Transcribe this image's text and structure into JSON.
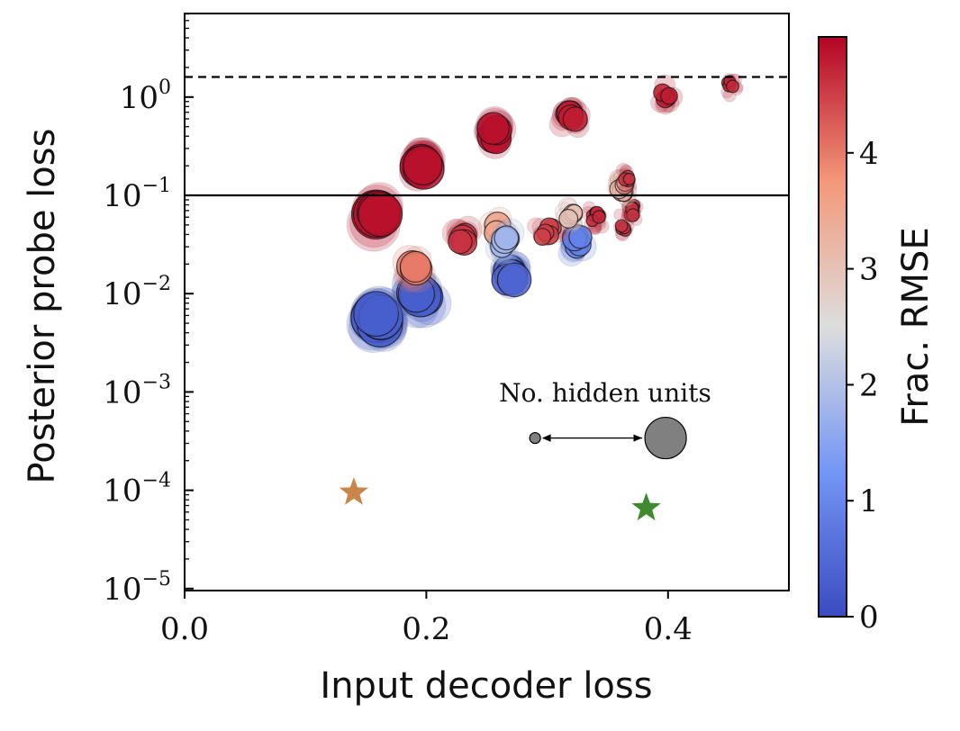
{
  "chart_data": {
    "type": "scatter",
    "xlabel": "Input decoder loss",
    "ylabel": "Posterior probe loss",
    "xlim": [
      0.0,
      0.5
    ],
    "ylim_log10": [
      -5,
      0.8
    ],
    "y_scale": "log",
    "x_ticks": [
      {
        "value": 0.0,
        "label": "0.0"
      },
      {
        "value": 0.2,
        "label": "0.2"
      },
      {
        "value": 0.4,
        "label": "0.4"
      }
    ],
    "y_ticks": [
      {
        "exp": 0,
        "base": "10",
        "sup": "0"
      },
      {
        "exp": -1,
        "base": "10",
        "sup": "−1"
      },
      {
        "exp": -2,
        "base": "10",
        "sup": "−2"
      },
      {
        "exp": -3,
        "base": "10",
        "sup": "−3"
      },
      {
        "exp": -4,
        "base": "10",
        "sup": "−4"
      },
      {
        "exp": -5,
        "base": "10",
        "sup": "−5"
      }
    ],
    "reference_lines": [
      {
        "name": "dashed-reference-line",
        "style": "dashed",
        "y": 1.6
      },
      {
        "name": "solid-reference-line",
        "style": "solid",
        "y": 0.1
      }
    ],
    "colorbar": {
      "label": "Frac. RMSE",
      "min": 0,
      "max": 5,
      "ticks": [
        {
          "value": 0,
          "label": "0"
        },
        {
          "value": 1,
          "label": "1"
        },
        {
          "value": 2,
          "label": "2"
        },
        {
          "value": 3,
          "label": "3"
        },
        {
          "value": 4,
          "label": "4"
        }
      ]
    },
    "size_legend": {
      "label": "No. hidden units",
      "x_small": 0.29,
      "x_large": 0.398,
      "y": 0.00034
    },
    "stars": [
      {
        "name": "orange-star",
        "x": 0.14,
        "y": 9.5e-05,
        "color": "#c8864a"
      },
      {
        "name": "green-star",
        "x": 0.382,
        "y": 6.6e-05,
        "color": "#3f8a2e"
      }
    ],
    "clusters": [
      {
        "x": 0.16,
        "y": 0.063,
        "rmse": 4.9,
        "size": 5,
        "spread": 0.004,
        "n": 4
      },
      {
        "x": 0.196,
        "y": 0.21,
        "rmse": 4.9,
        "size": 4,
        "spread": 0.004,
        "n": 5
      },
      {
        "x": 0.257,
        "y": 0.42,
        "rmse": 4.9,
        "size": 3,
        "spread": 0.004,
        "n": 4
      },
      {
        "x": 0.32,
        "y": 0.6,
        "rmse": 4.8,
        "size": 2,
        "spread": 0.008,
        "n": 5
      },
      {
        "x": 0.398,
        "y": 1.07,
        "rmse": 4.8,
        "size": 1,
        "spread": 0.006,
        "n": 4
      },
      {
        "x": 0.452,
        "y": 1.27,
        "rmse": 4.7,
        "size": 0,
        "spread": 0.006,
        "n": 4
      },
      {
        "x": 0.16,
        "y": 0.0055,
        "rmse": 0.3,
        "size": 5,
        "spread": 0.006,
        "n": 8
      },
      {
        "x": 0.195,
        "y": 0.0095,
        "rmse": 0.3,
        "size": 4,
        "spread": 0.008,
        "n": 7
      },
      {
        "x": 0.27,
        "y": 0.015,
        "rmse": 0.4,
        "size": 3,
        "spread": 0.006,
        "n": 6
      },
      {
        "x": 0.325,
        "y": 0.033,
        "rmse": 0.9,
        "size": 2,
        "spread": 0.005,
        "n": 5
      },
      {
        "x": 0.37,
        "y": 0.069,
        "rmse": 4.6,
        "size": 0,
        "spread": 0.004,
        "n": 6
      },
      {
        "x": 0.362,
        "y": 0.12,
        "rmse": 3.2,
        "size": 1,
        "spread": 0.006,
        "n": 8
      },
      {
        "x": 0.19,
        "y": 0.018,
        "rmse": 4.0,
        "size": 3,
        "spread": 0.004,
        "n": 3
      },
      {
        "x": 0.23,
        "y": 0.036,
        "rmse": 4.6,
        "size": 2,
        "spread": 0.005,
        "n": 4
      },
      {
        "x": 0.258,
        "y": 0.045,
        "rmse": 3.5,
        "size": 2,
        "spread": 0.005,
        "n": 3
      },
      {
        "x": 0.265,
        "y": 0.033,
        "rmse": 1.8,
        "size": 2,
        "spread": 0.005,
        "n": 4
      },
      {
        "x": 0.3,
        "y": 0.042,
        "rmse": 4.5,
        "size": 1,
        "spread": 0.01,
        "n": 5
      },
      {
        "x": 0.32,
        "y": 0.065,
        "rmse": 3.0,
        "size": 1,
        "spread": 0.006,
        "n": 4
      },
      {
        "x": 0.34,
        "y": 0.058,
        "rmse": 4.7,
        "size": 0,
        "spread": 0.006,
        "n": 6
      },
      {
        "x": 0.363,
        "y": 0.05,
        "rmse": 4.6,
        "size": 0,
        "spread": 0.004,
        "n": 4
      },
      {
        "x": 0.366,
        "y": 0.145,
        "rmse": 4.6,
        "size": 0,
        "spread": 0.004,
        "n": 4
      }
    ]
  }
}
